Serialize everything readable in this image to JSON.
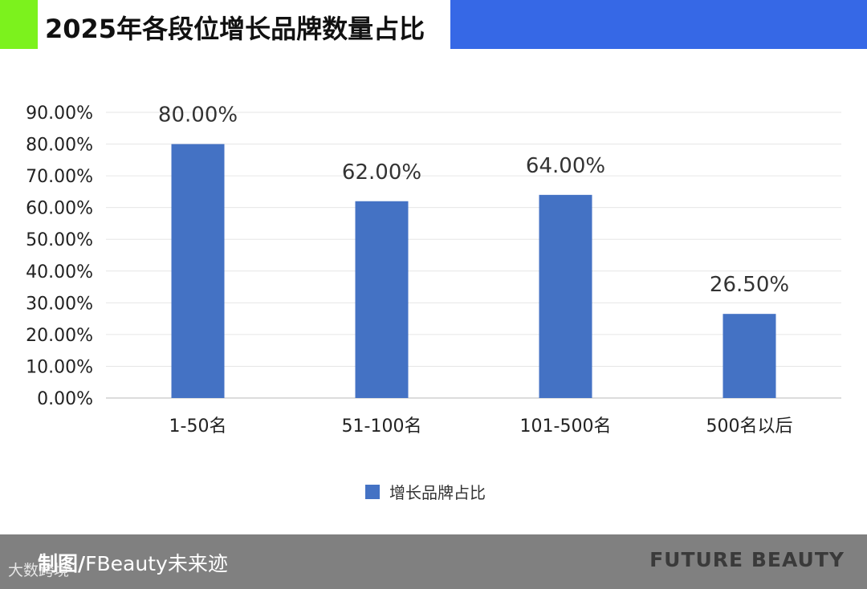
{
  "header": {
    "title": "2025年各段位增长品牌数量占比",
    "accent_left": "#7cf21d",
    "accent_right": "#3668e6"
  },
  "chart_data": {
    "type": "bar",
    "title": "2025年各段位增长品牌数量占比",
    "categories": [
      "1-50名",
      "51-100名",
      "101-500名",
      "500名以后"
    ],
    "series": [
      {
        "name": "增长品牌占比",
        "values": [
          80.0,
          62.0,
          64.0,
          26.5
        ],
        "color": "#4472c4"
      }
    ],
    "data_labels": [
      "80.00%",
      "62.00%",
      "64.00%",
      "26.50%"
    ],
    "y_ticks": [
      "0.00%",
      "10.00%",
      "20.00%",
      "30.00%",
      "40.00%",
      "50.00%",
      "60.00%",
      "70.00%",
      "80.00%",
      "90.00%"
    ],
    "ylim": [
      0,
      90
    ],
    "grid": true,
    "legend_position": "bottom-center"
  },
  "legend": {
    "label": "增长品牌占比"
  },
  "footer": {
    "credit_prefix": "制图/",
    "credit_name": "FBeauty未来迹",
    "brand": "FUTURE BEAUTY",
    "watermark": "大数跨境"
  }
}
